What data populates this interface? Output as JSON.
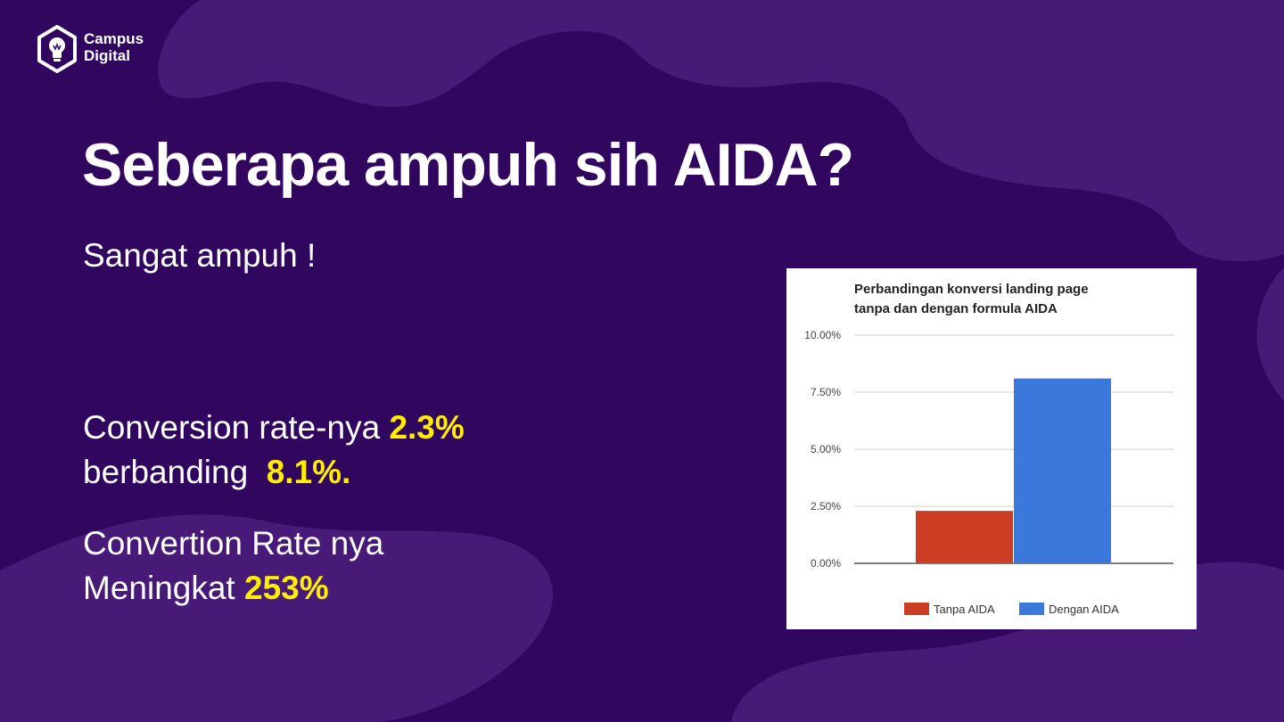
{
  "brand": {
    "line1": "Campus",
    "line2": "Digital"
  },
  "slide": {
    "title": "Seberapa ampuh sih AIDA?",
    "subtitle": "Sangat ampuh !",
    "p1_a": "Conversion rate-nya ",
    "p1_hl1": "2.3%",
    "p1_b": "berbanding  ",
    "p1_hl2": "8.1%.",
    "p2_a": "Convertion Rate nya",
    "p2_b": "Meningkat ",
    "p2_hl": "253%"
  },
  "colors": {
    "background": "#30065f",
    "background_shape": "#481a78",
    "highlight": "#ffee00"
  },
  "chart_data": {
    "type": "bar",
    "title_line1": "Perbandingan konversi landing page",
    "title_line2": "tanpa dan dengan formula AIDA",
    "y_ticks": [
      "10.00%",
      "7.50%",
      "5.00%",
      "2.50%",
      "0.00%"
    ],
    "ylim": [
      0,
      10
    ],
    "grid": true,
    "legend_position": "bottom",
    "series": [
      {
        "name": "Tanpa AIDA",
        "value": 2.3,
        "color": "#cc3e24"
      },
      {
        "name": "Dengan AIDA",
        "value": 8.1,
        "color": "#3b78dc"
      }
    ]
  }
}
